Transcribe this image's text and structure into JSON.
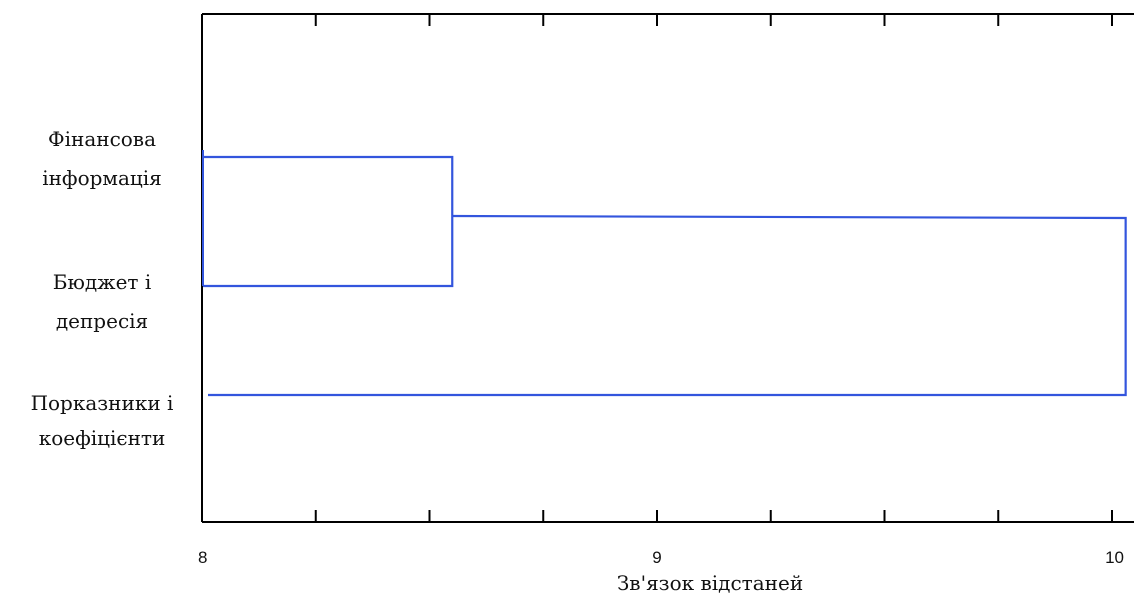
{
  "chart_data": {
    "type": "dendrogram",
    "xlabel": "Зв'язок відстаней",
    "xlim": [
      8,
      10.05
    ],
    "x_ticks": [
      {
        "value": 8,
        "label": "8"
      },
      {
        "value": 9,
        "label": "9"
      },
      {
        "value": 10,
        "label": "10"
      }
    ],
    "leaves": [
      {
        "label_lines": [
          "Фінансова",
          "інформація"
        ]
      },
      {
        "label_lines": [
          "Бюджет і",
          "депресія"
        ]
      },
      {
        "label_lines": [
          "Порказники і",
          "коефіцієнти"
        ]
      }
    ],
    "merges": [
      {
        "members": [
          0,
          1
        ],
        "distance": 8.55
      },
      {
        "members": [
          "cluster-1",
          2
        ],
        "distance": 10.03
      }
    ],
    "line_color": "#3355dd",
    "axis_color": "#000000"
  }
}
